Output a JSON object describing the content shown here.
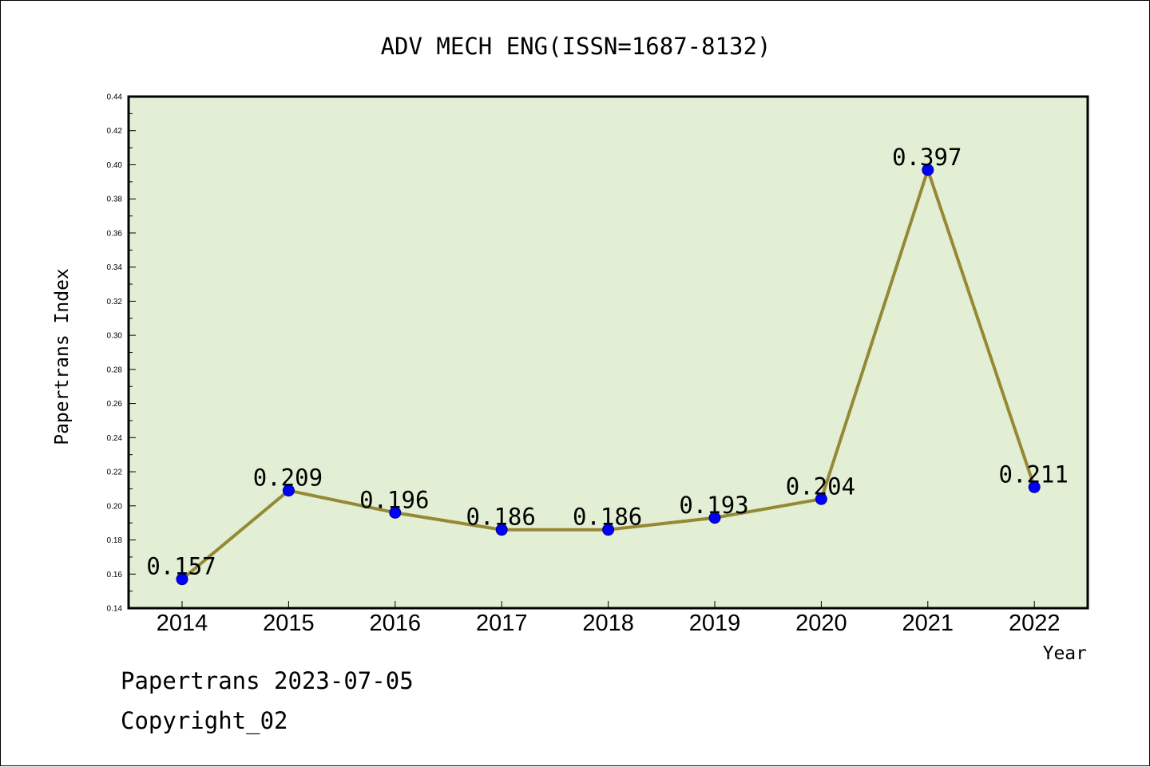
{
  "chart_data": {
    "type": "line",
    "title": "ADV MECH ENG(ISSN=1687-8132)",
    "xlabel": "Year",
    "ylabel": "Papertrans Index",
    "categories": [
      "2014",
      "2015",
      "2016",
      "2017",
      "2018",
      "2019",
      "2020",
      "2021",
      "2022"
    ],
    "series": [
      {
        "values": [
          0.157,
          0.209,
          0.196,
          0.186,
          0.186,
          0.193,
          0.204,
          0.397,
          0.211
        ],
        "labels": [
          "0.157",
          "0.209",
          "0.196",
          "0.186",
          "0.186",
          "0.193",
          "0.204",
          "0.397",
          "0.211"
        ],
        "line_color": "#958936",
        "marker_color": "#0000ff"
      }
    ],
    "ylim": [
      0.14,
      0.44
    ],
    "yticks": [
      0.14,
      0.16,
      0.18,
      0.2,
      0.22,
      0.24,
      0.26,
      0.28,
      0.3,
      0.32,
      0.34,
      0.36,
      0.38,
      0.4,
      0.42,
      0.44
    ],
    "ytick_labels": [
      "0.14",
      "0.16",
      "0.18",
      "0.20",
      "0.22",
      "0.24",
      "0.26",
      "0.28",
      "0.30",
      "0.32",
      "0.34",
      "0.36",
      "0.38",
      "0.40",
      "0.42",
      "0.44"
    ],
    "grid": false,
    "plot_background": "#e2efd5"
  },
  "footer": {
    "line1": "Papertrans 2023-07-05",
    "line2": "Copyright_02"
  }
}
